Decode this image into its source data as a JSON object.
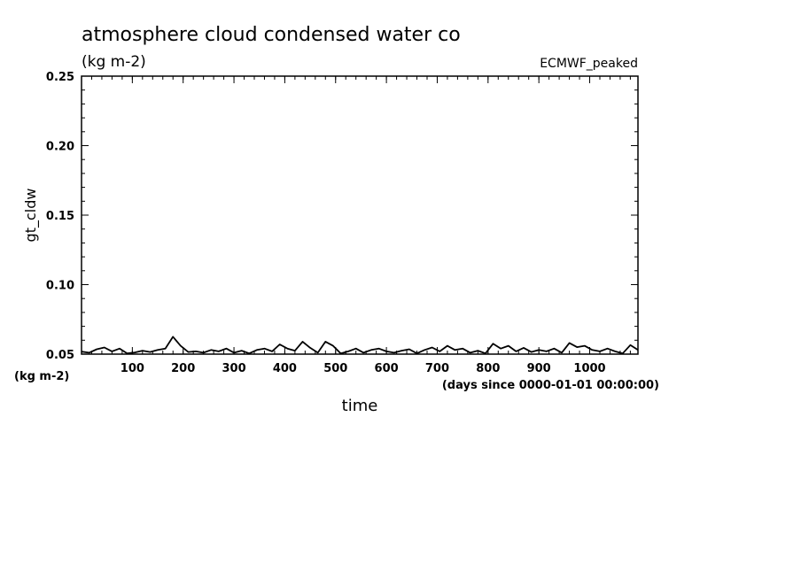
{
  "chart_data": {
    "type": "line",
    "title": "atmosphere cloud condensed water co",
    "subtitle": "(kg m-2)",
    "annotation": "ECMWF_peaked",
    "xlabel": "time",
    "x_units": "(days since 0000-01-01 00:00:00)",
    "ylabel": "gt_cldw",
    "y_units": "(kg m-2)",
    "xlim": [
      0,
      1095
    ],
    "ylim": [
      0.05,
      0.25
    ],
    "x_ticks": [
      100,
      200,
      300,
      400,
      500,
      600,
      700,
      800,
      900,
      1000
    ],
    "x_tick_labels": [
      "100",
      "200",
      "300",
      "400",
      "500",
      "600",
      "700",
      "800",
      "900",
      "1000"
    ],
    "y_ticks": [
      0.05,
      0.1,
      0.15,
      0.2,
      0.25
    ],
    "y_tick_labels": [
      "0.05",
      "0.10",
      "0.15",
      "0.20",
      "0.25"
    ],
    "grid": false,
    "line_color": "#000000",
    "series": [
      {
        "x": [
          0,
          15,
          30,
          45,
          60,
          75,
          90,
          105,
          120,
          135,
          150,
          165,
          180,
          195,
          210,
          225,
          240,
          255,
          270,
          285,
          300,
          315,
          330,
          345,
          360,
          375,
          390,
          405,
          420,
          435,
          450,
          465,
          480,
          495,
          510,
          525,
          540,
          555,
          570,
          585,
          600,
          615,
          630,
          645,
          660,
          675,
          690,
          705,
          720,
          735,
          750,
          765,
          780,
          795,
          810,
          825,
          840,
          855,
          870,
          885,
          900,
          915,
          930,
          945,
          960,
          975,
          990,
          1005,
          1020,
          1035,
          1050,
          1065,
          1080,
          1095
        ],
        "values": [
          0.0518,
          0.051,
          0.0535,
          0.0548,
          0.052,
          0.054,
          0.0505,
          0.0512,
          0.0525,
          0.0515,
          0.053,
          0.054,
          0.0625,
          0.056,
          0.0515,
          0.052,
          0.051,
          0.053,
          0.052,
          0.054,
          0.051,
          0.0525,
          0.0505,
          0.053,
          0.054,
          0.052,
          0.057,
          0.054,
          0.0525,
          0.059,
          0.0545,
          0.051,
          0.059,
          0.056,
          0.0505,
          0.052,
          0.054,
          0.051,
          0.053,
          0.054,
          0.052,
          0.051,
          0.0525,
          0.0535,
          0.0505,
          0.053,
          0.0548,
          0.052,
          0.056,
          0.053,
          0.054,
          0.051,
          0.0525,
          0.0505,
          0.0575,
          0.054,
          0.056,
          0.052,
          0.0545,
          0.0515,
          0.053,
          0.052,
          0.054,
          0.051,
          0.058,
          0.055,
          0.056,
          0.053,
          0.052,
          0.054,
          0.052,
          0.0505,
          0.0565,
          0.053
        ]
      }
    ]
  }
}
